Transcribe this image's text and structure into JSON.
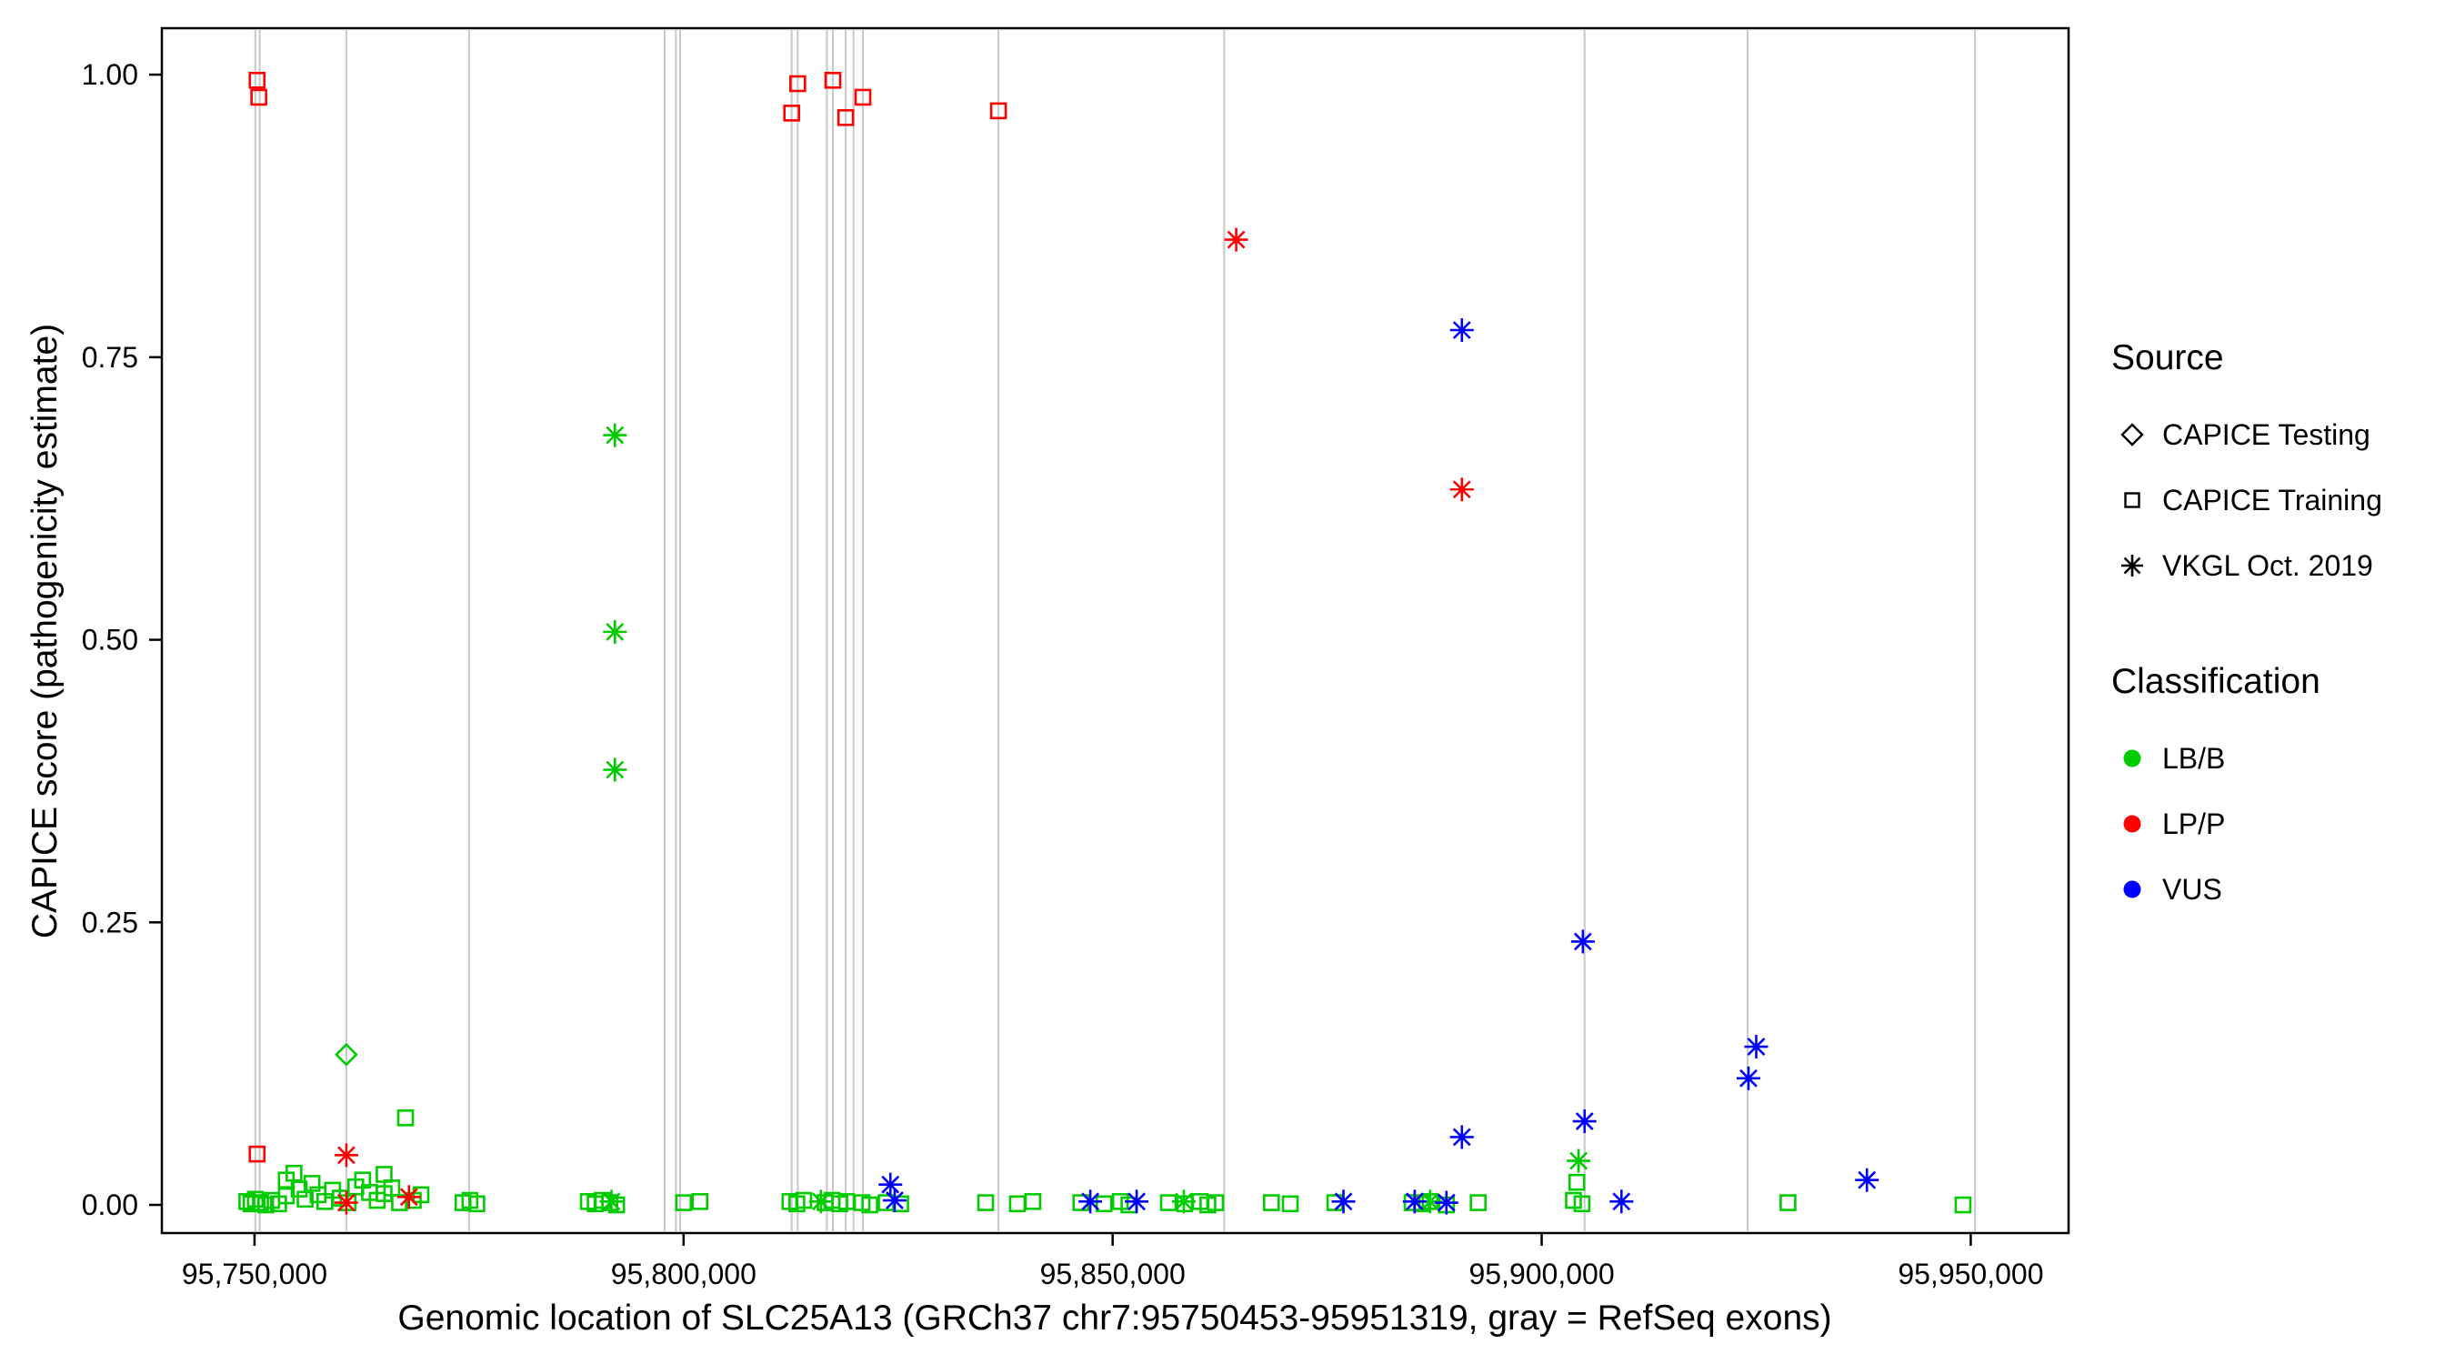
{
  "chart_data": {
    "type": "scatter",
    "title": "",
    "xlabel": "Genomic location of SLC25A13 (GRCh37 chr7:95750453-95951319, gray = RefSeq exons)",
    "ylabel": "CAPICE score (pathogenicity estimate)",
    "xlim": [
      95739200,
      95961400
    ],
    "ylim": [
      -0.0249,
      1.0411
    ],
    "grid": "off",
    "legend_position": "right",
    "x_ticks": [
      {
        "value": 95750000,
        "label": "95,750,000"
      },
      {
        "value": 95800000,
        "label": "95,800,000"
      },
      {
        "value": 95850000,
        "label": "95,850,000"
      },
      {
        "value": 95900000,
        "label": "95,900,000"
      },
      {
        "value": 95950000,
        "label": "95,950,000"
      }
    ],
    "y_ticks": [
      {
        "value": 0.0,
        "label": "0.00"
      },
      {
        "value": 0.25,
        "label": "0.25"
      },
      {
        "value": 0.5,
        "label": "0.50"
      },
      {
        "value": 0.75,
        "label": "0.75"
      },
      {
        "value": 1.0,
        "label": "1.00"
      }
    ],
    "colors": {
      "exon": "#c8c8c8",
      "lbb": "#00cc00",
      "lpp": "#ff0000",
      "vus": "#0000ff"
    },
    "exons": [
      95750100,
      95750600,
      95760700,
      95775000,
      95797800,
      95799100,
      95799600,
      95812600,
      95813300,
      95816700,
      95817400,
      95818900,
      95819800,
      95820900,
      95836700,
      95863000,
      95905000,
      95924000,
      95950500
    ],
    "series": [
      {
        "name": "CAPICE Testing / LB/B",
        "source": "CAPICE Testing",
        "classification": "LB/B",
        "shape": "diamond",
        "color_key": "lbb",
        "points": [
          [
            95760700,
            0.133
          ]
        ]
      },
      {
        "name": "CAPICE Training / LP/P",
        "source": "CAPICE Training",
        "classification": "LP/P",
        "shape": "square",
        "color_key": "lpp",
        "points": [
          [
            95750300,
            0.995
          ],
          [
            95750500,
            0.98
          ],
          [
            95750300,
            0.045
          ],
          [
            95812600,
            0.966
          ],
          [
            95813300,
            0.992
          ],
          [
            95817400,
            0.995
          ],
          [
            95818900,
            0.962
          ],
          [
            95820900,
            0.98
          ],
          [
            95836700,
            0.968
          ]
        ]
      },
      {
        "name": "CAPICE Training / LB/B",
        "source": "CAPICE Training",
        "classification": "LB/B",
        "shape": "square",
        "color_key": "lbb",
        "points": [
          [
            95749100,
            0.003
          ],
          [
            95749600,
            0.001
          ],
          [
            95750100,
            0.005
          ],
          [
            95750700,
            0.002
          ],
          [
            95751300,
            0.0
          ],
          [
            95752000,
            0.004
          ],
          [
            95752800,
            0.001
          ],
          [
            95753700,
            0.022
          ],
          [
            95753700,
            0.008
          ],
          [
            95754600,
            0.028
          ],
          [
            95755200,
            0.014
          ],
          [
            95755900,
            0.005
          ],
          [
            95756700,
            0.019
          ],
          [
            95757400,
            0.009
          ],
          [
            95758200,
            0.003
          ],
          [
            95759100,
            0.013
          ],
          [
            95760000,
            0.006
          ],
          [
            95760900,
            0.002
          ],
          [
            95761800,
            0.016
          ],
          [
            95762600,
            0.022
          ],
          [
            95763400,
            0.011
          ],
          [
            95764300,
            0.004
          ],
          [
            95765100,
            0.027
          ],
          [
            95765100,
            0.01
          ],
          [
            95766000,
            0.015
          ],
          [
            95766900,
            0.002
          ],
          [
            95767600,
            0.077
          ],
          [
            95768500,
            0.004
          ],
          [
            95769400,
            0.009
          ],
          [
            95774300,
            0.002
          ],
          [
            95775100,
            0.004
          ],
          [
            95775900,
            0.001
          ],
          [
            95788900,
            0.003
          ],
          [
            95789700,
            0.001
          ],
          [
            95790500,
            0.004
          ],
          [
            95791400,
            0.002
          ],
          [
            95792200,
            0.0
          ],
          [
            95800000,
            0.002
          ],
          [
            95801900,
            0.003
          ],
          [
            95812400,
            0.003
          ],
          [
            95813200,
            0.001
          ],
          [
            95814000,
            0.004
          ],
          [
            95816500,
            0.002
          ],
          [
            95817300,
            0.004
          ],
          [
            95818200,
            0.001
          ],
          [
            95819000,
            0.003
          ],
          [
            95820800,
            0.002
          ],
          [
            95821700,
            0.0
          ],
          [
            95823600,
            0.002
          ],
          [
            95825300,
            0.001
          ],
          [
            95835200,
            0.002
          ],
          [
            95838900,
            0.001
          ],
          [
            95840700,
            0.003
          ],
          [
            95846300,
            0.002
          ],
          [
            95849000,
            0.001
          ],
          [
            95850900,
            0.003
          ],
          [
            95851900,
            0.0
          ],
          [
            95856500,
            0.002
          ],
          [
            95858400,
            0.001
          ],
          [
            95860200,
            0.003
          ],
          [
            95861100,
            0.0
          ],
          [
            95862000,
            0.002
          ],
          [
            95868500,
            0.002
          ],
          [
            95870700,
            0.001
          ],
          [
            95875900,
            0.002
          ],
          [
            95884900,
            0.002
          ],
          [
            95886000,
            0.001
          ],
          [
            95887000,
            0.003
          ],
          [
            95888900,
            0.0
          ],
          [
            95892600,
            0.002
          ],
          [
            95903700,
            0.004
          ],
          [
            95904100,
            0.02
          ],
          [
            95904700,
            0.001
          ],
          [
            95928700,
            0.002
          ],
          [
            95949100,
            0.0
          ]
        ]
      },
      {
        "name": "VKGL Oct. 2019 / LB/B",
        "source": "VKGL Oct. 2019",
        "classification": "LB/B",
        "shape": "asterisk",
        "color_key": "lbb",
        "points": [
          [
            95792000,
            0.681
          ],
          [
            95792000,
            0.507
          ],
          [
            95792000,
            0.385
          ],
          [
            95791600,
            0.003
          ],
          [
            95816000,
            0.003
          ],
          [
            95858300,
            0.003
          ],
          [
            95887000,
            0.003
          ],
          [
            95904300,
            0.039
          ]
        ]
      },
      {
        "name": "VKGL Oct. 2019 / LP/P",
        "source": "VKGL Oct. 2019",
        "classification": "LP/P",
        "shape": "asterisk",
        "color_key": "lpp",
        "points": [
          [
            95864400,
            0.854
          ],
          [
            95890700,
            0.633
          ],
          [
            95760700,
            0.044
          ],
          [
            95760700,
            0.002
          ],
          [
            95768000,
            0.007
          ]
        ]
      },
      {
        "name": "VKGL Oct. 2019 / VUS",
        "source": "VKGL Oct. 2019",
        "classification": "VUS",
        "shape": "asterisk",
        "color_key": "vus",
        "points": [
          [
            95890700,
            0.774
          ],
          [
            95904800,
            0.233
          ],
          [
            95925000,
            0.14
          ],
          [
            95924100,
            0.112
          ],
          [
            95905000,
            0.074
          ],
          [
            95890700,
            0.06
          ],
          [
            95937900,
            0.022
          ],
          [
            95824100,
            0.018
          ],
          [
            95824600,
            0.004
          ],
          [
            95847400,
            0.003
          ],
          [
            95852800,
            0.003
          ],
          [
            95876900,
            0.003
          ],
          [
            95885200,
            0.003
          ],
          [
            95888900,
            0.002
          ],
          [
            95909300,
            0.003
          ]
        ]
      }
    ],
    "legend": {
      "source": {
        "title": "Source",
        "items": [
          {
            "label": "CAPICE Testing",
            "shape": "diamond"
          },
          {
            "label": "CAPICE Training",
            "shape": "square"
          },
          {
            "label": "VKGL Oct. 2019",
            "shape": "asterisk"
          }
        ]
      },
      "classification": {
        "title": "Classification",
        "items": [
          {
            "label": "LB/B",
            "color_key": "lbb"
          },
          {
            "label": "LP/P",
            "color_key": "lpp"
          },
          {
            "label": "VUS",
            "color_key": "vus"
          }
        ]
      }
    }
  }
}
